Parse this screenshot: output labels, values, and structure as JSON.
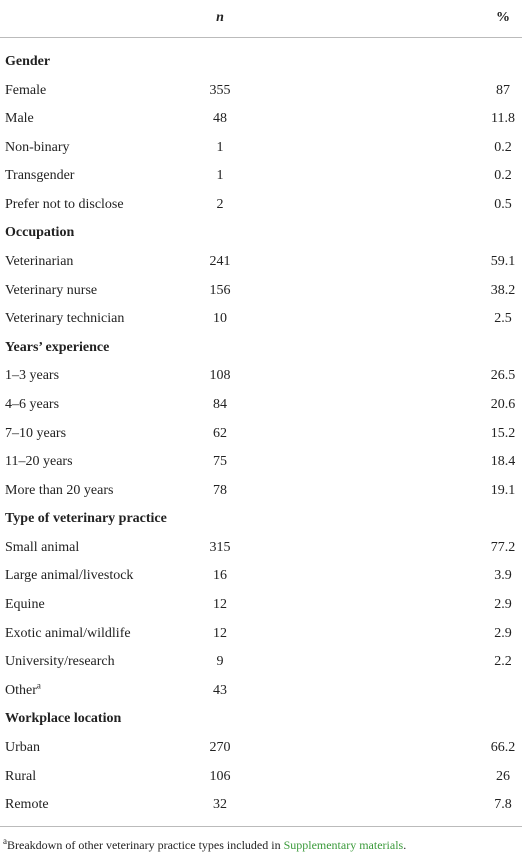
{
  "table": {
    "header": {
      "n": "n",
      "pct": "%"
    },
    "groups": [
      {
        "heading": "Gender",
        "rows": [
          {
            "label": "Female",
            "n": 355,
            "pct": 87
          },
          {
            "label": "Male",
            "n": 48,
            "pct": 11.8
          },
          {
            "label": "Non-binary",
            "n": 1,
            "pct": 0.2
          },
          {
            "label": "Transgender",
            "n": 1,
            "pct": 0.2
          },
          {
            "label": "Prefer not to disclose",
            "n": 2,
            "pct": 0.5
          }
        ]
      },
      {
        "heading": "Occupation",
        "rows": [
          {
            "label": "Veterinarian",
            "n": 241,
            "pct": 59.1
          },
          {
            "label": "Veterinary nurse",
            "n": 156,
            "pct": 38.2
          },
          {
            "label": "Veterinary technician",
            "n": 10,
            "pct": 2.5
          }
        ]
      },
      {
        "heading": "Years’ experience",
        "rows": [
          {
            "label": "1–3 years",
            "n": 108,
            "pct": 26.5
          },
          {
            "label": "4–6 years",
            "n": 84,
            "pct": 20.6
          },
          {
            "label": "7–10 years",
            "n": 62,
            "pct": 15.2
          },
          {
            "label": "11–20 years",
            "n": 75,
            "pct": 18.4
          },
          {
            "label": "More than 20 years",
            "n": 78,
            "pct": 19.1
          }
        ]
      },
      {
        "heading": "Type of veterinary practice",
        "rows": [
          {
            "label": "Small animal",
            "n": 315,
            "pct": 77.2
          },
          {
            "label": "Large animal/livestock",
            "n": 16,
            "pct": 3.9
          },
          {
            "label": "Equine",
            "n": 12,
            "pct": 2.9
          },
          {
            "label": "Exotic animal/wildlife",
            "n": 12,
            "pct": 2.9
          },
          {
            "label": "University/research",
            "n": 9,
            "pct": 2.2
          },
          {
            "label": "Other",
            "note": "a",
            "n": 43
          }
        ]
      },
      {
        "heading": "Workplace location",
        "rows": [
          {
            "label": "Urban",
            "n": 270,
            "pct": 66.2
          },
          {
            "label": "Rural",
            "n": 106,
            "pct": 26
          },
          {
            "label": "Remote",
            "n": 32,
            "pct": 7.8
          }
        ]
      }
    ]
  },
  "footnote": {
    "marker": "a",
    "text": "Breakdown of other veterinary practice types included in ",
    "link": "Supplementary materials",
    "end": "."
  }
}
